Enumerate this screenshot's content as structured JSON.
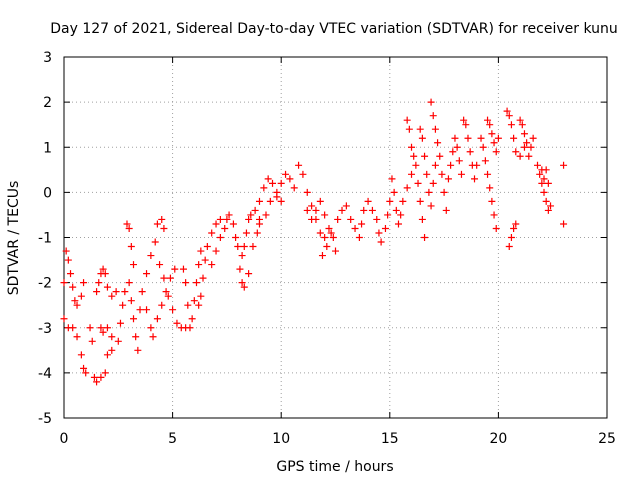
{
  "chart_data": {
    "type": "scatter",
    "title": "Day 127 of 2021, Sidereal Day-to-day VTEC variation (SDTVAR) for receiver kunu",
    "xlabel": "GPS time / hours",
    "ylabel": "SDTVAR / TECUs",
    "xlim": [
      0,
      25
    ],
    "ylim": [
      -5,
      3
    ],
    "xticks": [
      0,
      5,
      10,
      15,
      20,
      25
    ],
    "yticks": [
      -5,
      -4,
      -3,
      -2,
      -1,
      0,
      1,
      2,
      3
    ],
    "xtick_labels": [
      "0",
      "5",
      "10",
      "15",
      "20",
      "25"
    ],
    "ytick_labels": [
      "-5",
      "-4",
      "-3",
      "-2",
      "-1",
      "0",
      "1",
      "2",
      "3"
    ],
    "grid": true,
    "marker": "+",
    "series_color": "#ff0000",
    "series": [
      {
        "name": "SDTVAR",
        "points": [
          [
            0.0,
            -2.0
          ],
          [
            0.1,
            -1.3
          ],
          [
            0.2,
            -1.5
          ],
          [
            0.3,
            -1.8
          ],
          [
            0.4,
            -2.1
          ],
          [
            0.5,
            -2.4
          ],
          [
            0.6,
            -2.5
          ],
          [
            0.8,
            -2.3
          ],
          [
            0.9,
            -2.0
          ],
          [
            0.0,
            -2.8
          ],
          [
            0.2,
            -3.0
          ],
          [
            0.4,
            -3.0
          ],
          [
            0.6,
            -3.2
          ],
          [
            0.8,
            -3.6
          ],
          [
            0.9,
            -3.9
          ],
          [
            1.0,
            -4.0
          ],
          [
            1.2,
            -3.0
          ],
          [
            1.3,
            -3.3
          ],
          [
            1.4,
            -4.1
          ],
          [
            1.5,
            -4.2
          ],
          [
            1.7,
            -4.1
          ],
          [
            1.9,
            -4.0
          ],
          [
            2.0,
            -3.6
          ],
          [
            2.2,
            -3.2
          ],
          [
            1.5,
            -2.2
          ],
          [
            1.6,
            -2.0
          ],
          [
            1.7,
            -1.8
          ],
          [
            1.8,
            -1.7
          ],
          [
            1.9,
            -1.8
          ],
          [
            2.0,
            -2.1
          ],
          [
            2.2,
            -2.3
          ],
          [
            2.4,
            -2.2
          ],
          [
            1.7,
            -3.0
          ],
          [
            1.8,
            -3.1
          ],
          [
            2.0,
            -3.0
          ],
          [
            2.2,
            -3.5
          ],
          [
            2.5,
            -3.3
          ],
          [
            2.6,
            -2.9
          ],
          [
            2.7,
            -2.5
          ],
          [
            2.8,
            -2.2
          ],
          [
            2.9,
            -0.7
          ],
          [
            3.0,
            -0.8
          ],
          [
            3.1,
            -1.2
          ],
          [
            3.2,
            -1.6
          ],
          [
            3.0,
            -2.0
          ],
          [
            3.1,
            -2.4
          ],
          [
            3.2,
            -2.8
          ],
          [
            3.3,
            -3.2
          ],
          [
            3.4,
            -3.5
          ],
          [
            3.5,
            -2.6
          ],
          [
            3.6,
            -2.2
          ],
          [
            3.8,
            -1.8
          ],
          [
            4.0,
            -1.4
          ],
          [
            4.2,
            -1.1
          ],
          [
            4.3,
            -0.7
          ],
          [
            4.5,
            -0.6
          ],
          [
            4.6,
            -0.8
          ],
          [
            3.8,
            -2.6
          ],
          [
            4.0,
            -3.0
          ],
          [
            4.1,
            -3.2
          ],
          [
            4.3,
            -2.8
          ],
          [
            4.5,
            -2.5
          ],
          [
            4.7,
            -2.2
          ],
          [
            4.9,
            -1.9
          ],
          [
            5.1,
            -1.7
          ],
          [
            4.4,
            -1.6
          ],
          [
            4.6,
            -1.9
          ],
          [
            4.8,
            -2.3
          ],
          [
            5.0,
            -2.6
          ],
          [
            5.2,
            -2.9
          ],
          [
            5.4,
            -3.0
          ],
          [
            5.6,
            -3.0
          ],
          [
            5.8,
            -3.0
          ],
          [
            5.5,
            -1.7
          ],
          [
            5.6,
            -2.0
          ],
          [
            5.7,
            -2.5
          ],
          [
            5.9,
            -2.8
          ],
          [
            6.0,
            -2.4
          ],
          [
            6.1,
            -2.0
          ],
          [
            6.2,
            -1.6
          ],
          [
            6.3,
            -1.3
          ],
          [
            6.2,
            -2.5
          ],
          [
            6.3,
            -2.3
          ],
          [
            6.4,
            -1.9
          ],
          [
            6.5,
            -1.5
          ],
          [
            6.6,
            -1.2
          ],
          [
            6.8,
            -0.9
          ],
          [
            7.0,
            -0.7
          ],
          [
            7.2,
            -0.6
          ],
          [
            6.8,
            -1.6
          ],
          [
            7.0,
            -1.3
          ],
          [
            7.2,
            -1.0
          ],
          [
            7.4,
            -0.8
          ],
          [
            7.5,
            -0.6
          ],
          [
            7.6,
            -0.5
          ],
          [
            7.8,
            -0.7
          ],
          [
            7.9,
            -1.0
          ],
          [
            8.0,
            -1.2
          ],
          [
            8.2,
            -1.4
          ],
          [
            8.3,
            -1.2
          ],
          [
            8.4,
            -0.9
          ],
          [
            8.5,
            -0.6
          ],
          [
            8.6,
            -0.5
          ],
          [
            8.1,
            -1.7
          ],
          [
            8.2,
            -2.0
          ],
          [
            8.3,
            -2.1
          ],
          [
            8.5,
            -1.8
          ],
          [
            8.7,
            -1.2
          ],
          [
            8.9,
            -0.9
          ],
          [
            9.0,
            -0.7
          ],
          [
            8.8,
            -0.4
          ],
          [
            9.0,
            -0.2
          ],
          [
            9.2,
            0.1
          ],
          [
            9.4,
            0.3
          ],
          [
            9.6,
            0.2
          ],
          [
            9.8,
            -0.1
          ],
          [
            10.0,
            -0.2
          ],
          [
            9.0,
            -0.6
          ],
          [
            9.3,
            -0.5
          ],
          [
            9.5,
            -0.2
          ],
          [
            9.8,
            0.0
          ],
          [
            10.0,
            0.2
          ],
          [
            10.2,
            0.4
          ],
          [
            10.4,
            0.3
          ],
          [
            10.6,
            0.1
          ],
          [
            10.8,
            0.6
          ],
          [
            11.0,
            0.4
          ],
          [
            11.2,
            0.0
          ],
          [
            11.4,
            -0.3
          ],
          [
            11.6,
            -0.6
          ],
          [
            11.8,
            -0.9
          ],
          [
            12.0,
            -1.0
          ],
          [
            11.2,
            -0.4
          ],
          [
            11.4,
            -0.6
          ],
          [
            11.6,
            -0.4
          ],
          [
            11.8,
            -0.2
          ],
          [
            12.0,
            -0.5
          ],
          [
            12.2,
            -0.8
          ],
          [
            12.4,
            -1.0
          ],
          [
            12.5,
            -1.3
          ],
          [
            11.9,
            -1.4
          ],
          [
            12.1,
            -1.2
          ],
          [
            12.3,
            -0.9
          ],
          [
            12.6,
            -0.6
          ],
          [
            12.8,
            -0.4
          ],
          [
            13.0,
            -0.3
          ],
          [
            13.2,
            -0.6
          ],
          [
            13.4,
            -0.8
          ],
          [
            13.6,
            -1.0
          ],
          [
            13.7,
            -0.7
          ],
          [
            13.8,
            -0.4
          ],
          [
            14.0,
            -0.2
          ],
          [
            14.2,
            -0.4
          ],
          [
            14.4,
            -0.6
          ],
          [
            14.5,
            -0.9
          ],
          [
            14.6,
            -1.1
          ],
          [
            14.8,
            -0.8
          ],
          [
            14.9,
            -0.5
          ],
          [
            15.0,
            -0.2
          ],
          [
            15.1,
            0.3
          ],
          [
            15.2,
            0.0
          ],
          [
            15.3,
            -0.4
          ],
          [
            15.4,
            -0.7
          ],
          [
            15.5,
            -0.5
          ],
          [
            15.6,
            -0.2
          ],
          [
            15.8,
            0.1
          ],
          [
            16.0,
            0.4
          ],
          [
            16.1,
            0.8
          ],
          [
            15.8,
            1.6
          ],
          [
            15.9,
            1.4
          ],
          [
            16.0,
            1.0
          ],
          [
            16.2,
            0.6
          ],
          [
            16.3,
            0.2
          ],
          [
            16.4,
            -0.2
          ],
          [
            16.5,
            -0.6
          ],
          [
            16.6,
            -1.0
          ],
          [
            16.4,
            1.4
          ],
          [
            16.5,
            1.2
          ],
          [
            16.6,
            0.8
          ],
          [
            16.7,
            0.4
          ],
          [
            16.8,
            0.0
          ],
          [
            16.9,
            -0.3
          ],
          [
            17.0,
            0.2
          ],
          [
            17.1,
            0.6
          ],
          [
            16.9,
            2.0
          ],
          [
            17.0,
            1.7
          ],
          [
            17.1,
            1.4
          ],
          [
            17.2,
            1.1
          ],
          [
            17.3,
            0.8
          ],
          [
            17.4,
            0.4
          ],
          [
            17.5,
            0.0
          ],
          [
            17.6,
            -0.4
          ],
          [
            17.7,
            0.3
          ],
          [
            17.8,
            0.6
          ],
          [
            17.9,
            0.9
          ],
          [
            18.0,
            1.2
          ],
          [
            18.1,
            1.0
          ],
          [
            18.2,
            0.7
          ],
          [
            18.3,
            0.4
          ],
          [
            18.4,
            1.6
          ],
          [
            18.5,
            1.5
          ],
          [
            18.6,
            1.2
          ],
          [
            18.7,
            0.9
          ],
          [
            18.8,
            0.6
          ],
          [
            18.9,
            0.3
          ],
          [
            19.0,
            0.6
          ],
          [
            19.2,
            1.2
          ],
          [
            19.3,
            1.0
          ],
          [
            19.4,
            0.7
          ],
          [
            19.5,
            0.4
          ],
          [
            19.6,
            0.1
          ],
          [
            19.7,
            -0.2
          ],
          [
            19.8,
            -0.5
          ],
          [
            19.9,
            -0.8
          ],
          [
            19.5,
            1.6
          ],
          [
            19.6,
            1.5
          ],
          [
            19.7,
            1.3
          ],
          [
            19.8,
            1.1
          ],
          [
            19.9,
            0.9
          ],
          [
            20.0,
            1.2
          ],
          [
            20.4,
            1.8
          ],
          [
            20.5,
            1.7
          ],
          [
            20.6,
            1.5
          ],
          [
            20.7,
            1.2
          ],
          [
            20.8,
            0.9
          ],
          [
            21.0,
            0.8
          ],
          [
            21.2,
            1.0
          ],
          [
            20.5,
            -1.2
          ],
          [
            20.6,
            -1.0
          ],
          [
            20.7,
            -0.8
          ],
          [
            20.8,
            -0.7
          ],
          [
            21.0,
            1.6
          ],
          [
            21.1,
            1.5
          ],
          [
            21.2,
            1.3
          ],
          [
            21.3,
            1.1
          ],
          [
            21.4,
            0.8
          ],
          [
            21.5,
            1.0
          ],
          [
            21.6,
            1.2
          ],
          [
            21.8,
            0.6
          ],
          [
            21.9,
            0.4
          ],
          [
            22.0,
            0.2
          ],
          [
            22.1,
            0.0
          ],
          [
            22.2,
            -0.2
          ],
          [
            22.3,
            -0.4
          ],
          [
            22.4,
            -0.3
          ],
          [
            22.0,
            0.5
          ],
          [
            22.1,
            0.3
          ],
          [
            22.2,
            0.5
          ],
          [
            22.3,
            0.2
          ],
          [
            23.0,
            0.6
          ],
          [
            23.0,
            -0.7
          ]
        ]
      }
    ]
  }
}
